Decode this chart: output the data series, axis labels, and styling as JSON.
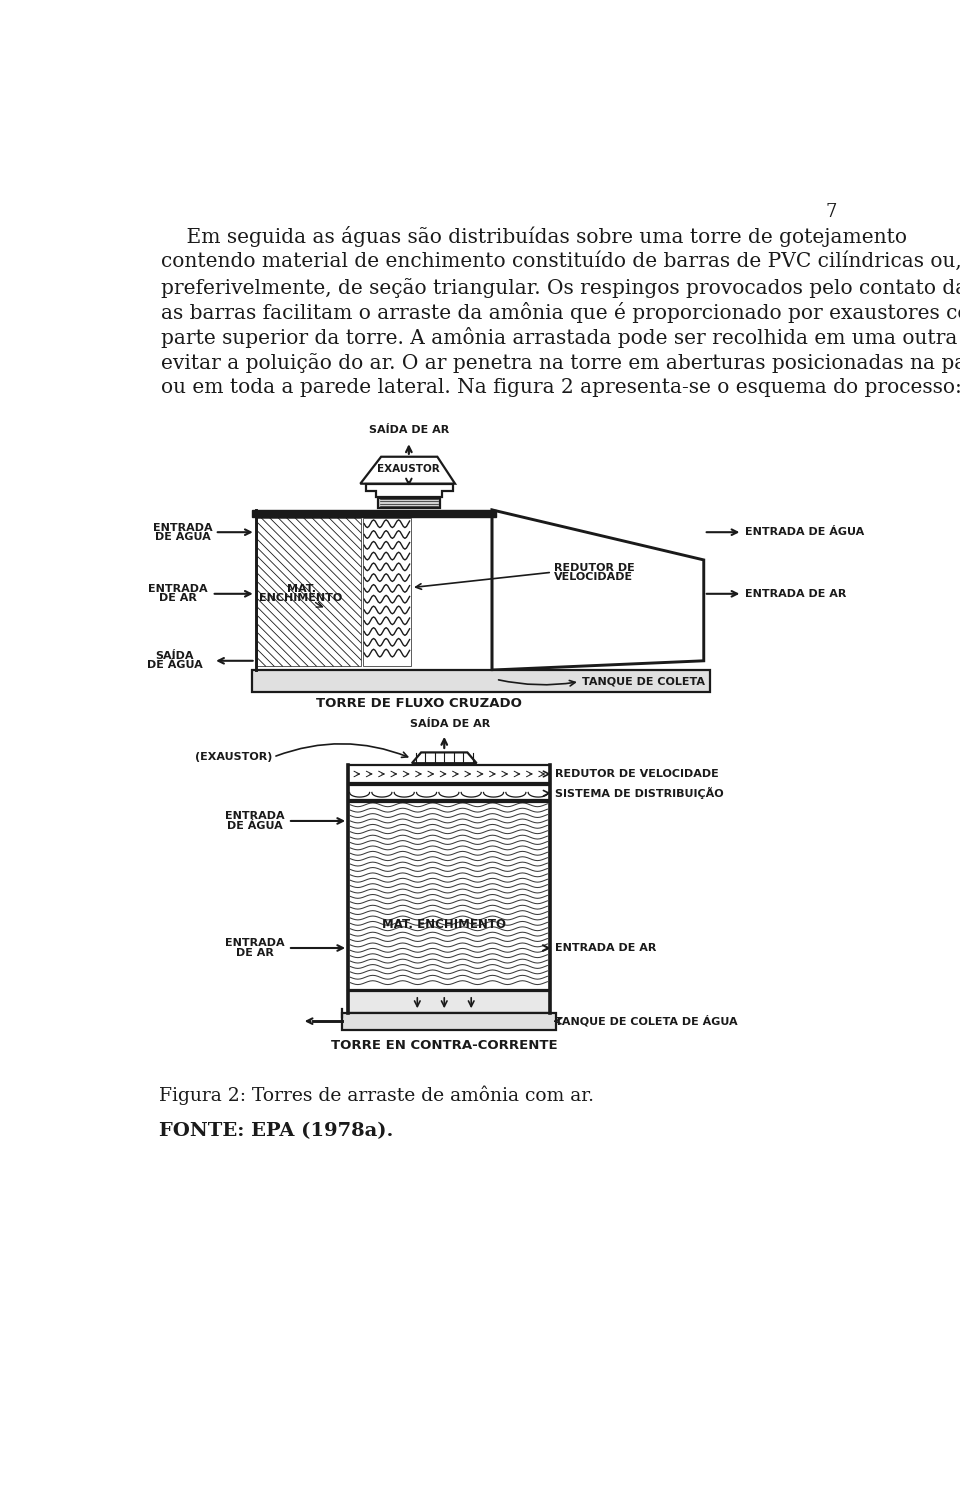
{
  "page_number": "7",
  "body_text_lines": [
    "    Em seguida as águas são distribuídas sobre uma torre de gotejamento",
    "contendo material de enchimento constituído de barras de PVC cilíndricas ou,",
    "preferivelmente, de seção triangular. Os respingos provocados pelo contato da água com",
    "as barras facilitam o arraste da amônia que é proporcionado por exaustores colocados na",
    "parte superior da torre. A amônia arrastada pode ser recolhida em uma outra coluna para",
    "evitar a poluição do ar. O ar penetra na torre em aberturas posicionadas na parte inferior",
    "ou em toda a parede lateral. Na figura 2 apresenta-se o esquema do processo:"
  ],
  "caption": "Figura 2: Torres de arraste de amônia com ar.",
  "source": "FONTE: EPA (1978a).",
  "d1_label": "TORRE DE FLUXO CRUZADO",
  "d2_label": "TORRE EN CONTRA-CORRENTE",
  "bg": "#ffffff",
  "ink": "#1a1a1a",
  "body_fs": 14.5,
  "label_fs": 8.0,
  "caption_fs": 13.5,
  "source_fs": 14.0,
  "pagenum_fs": 13.0,
  "lw": 1.6
}
